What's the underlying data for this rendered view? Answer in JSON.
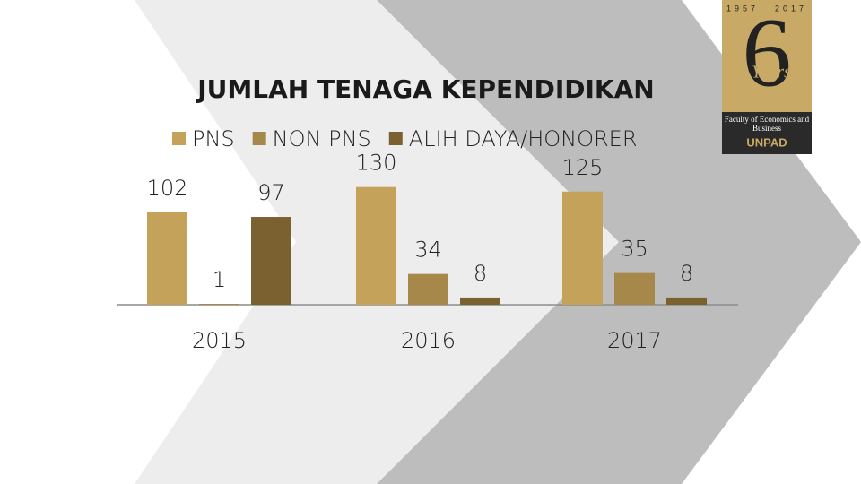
{
  "chart_data": {
    "type": "bar",
    "title": "JUMLAH TENAGA KEPENDIDIKAN",
    "categories": [
      "2015",
      "2016",
      "2017"
    ],
    "series": [
      {
        "name": "PNS",
        "color": "#c4a25a",
        "values": [
          102,
          130,
          125
        ]
      },
      {
        "name": "NON PNS",
        "color": "#a5884a",
        "values": [
          1,
          34,
          35
        ]
      },
      {
        "name": "ALIH DAYA/HONORER",
        "color": "#7b6030",
        "values": [
          97,
          8,
          8
        ]
      }
    ]
  },
  "logo": {
    "years_left": "1957",
    "years_right": "2017",
    "number": "6",
    "word": "Years",
    "faculty": "Faculty of Economics and Business",
    "university": "UNPAD"
  }
}
